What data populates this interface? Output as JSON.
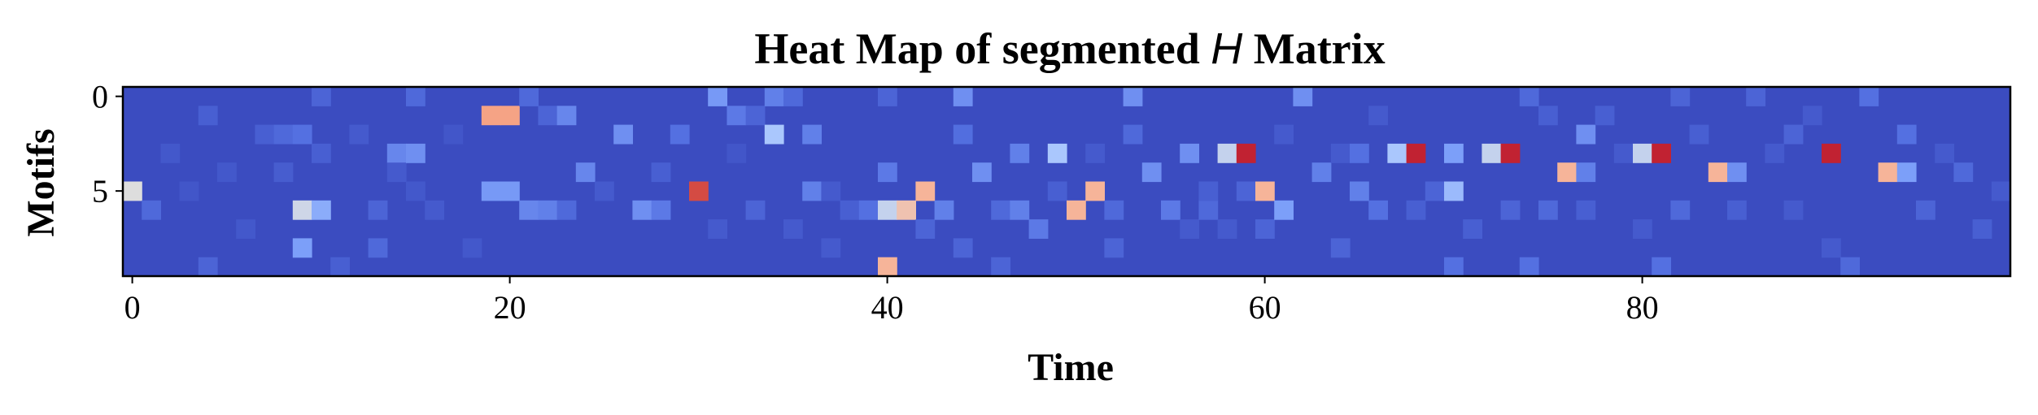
{
  "chart_data": {
    "type": "heatmap",
    "title_prefix": "Heat Map of segmented ",
    "title_var": "H",
    "title_suffix": " Matrix",
    "xlabel": "Time",
    "ylabel": "Motifs",
    "x_ticks": [
      0,
      20,
      40,
      60,
      80
    ],
    "y_ticks": [
      0,
      5
    ],
    "n_cols": 100,
    "n_rows": 10,
    "colormap": "coolwarm",
    "base_color": "#3b4cc0",
    "value_range": [
      0,
      1
    ],
    "cells": [
      [
        0,
        5,
        0.55
      ],
      [
        1,
        6,
        0.12
      ],
      [
        2,
        3,
        0.05
      ],
      [
        3,
        5,
        0.04
      ],
      [
        4,
        1,
        0.08
      ],
      [
        4,
        9,
        0.1
      ],
      [
        5,
        4,
        0.05
      ],
      [
        6,
        7,
        0.05
      ],
      [
        7,
        2,
        0.08
      ],
      [
        8,
        2,
        0.12
      ],
      [
        8,
        4,
        0.07
      ],
      [
        9,
        2,
        0.15
      ],
      [
        9,
        6,
        0.52
      ],
      [
        9,
        8,
        0.3
      ],
      [
        10,
        0,
        0.1
      ],
      [
        10,
        3,
        0.08
      ],
      [
        10,
        6,
        0.35
      ],
      [
        11,
        9,
        0.08
      ],
      [
        12,
        2,
        0.06
      ],
      [
        13,
        6,
        0.1
      ],
      [
        13,
        8,
        0.12
      ],
      [
        14,
        3,
        0.22
      ],
      [
        14,
        4,
        0.06
      ],
      [
        15,
        3,
        0.25
      ],
      [
        15,
        0,
        0.12
      ],
      [
        15,
        5,
        0.05
      ],
      [
        16,
        6,
        0.06
      ],
      [
        17,
        2,
        0.04
      ],
      [
        18,
        8,
        0.05
      ],
      [
        19,
        1,
        0.72
      ],
      [
        19,
        5,
        0.28
      ],
      [
        20,
        1,
        0.72
      ],
      [
        20,
        5,
        0.28
      ],
      [
        21,
        0,
        0.12
      ],
      [
        21,
        6,
        0.22
      ],
      [
        22,
        6,
        0.2
      ],
      [
        22,
        1,
        0.1
      ],
      [
        23,
        1,
        0.22
      ],
      [
        23,
        6,
        0.12
      ],
      [
        24,
        4,
        0.22
      ],
      [
        25,
        5,
        0.06
      ],
      [
        26,
        2,
        0.25
      ],
      [
        27,
        6,
        0.25
      ],
      [
        28,
        6,
        0.18
      ],
      [
        28,
        4,
        0.08
      ],
      [
        29,
        2,
        0.15
      ],
      [
        30,
        5,
        0.88
      ],
      [
        31,
        0,
        0.28
      ],
      [
        31,
        7,
        0.06
      ],
      [
        32,
        1,
        0.18
      ],
      [
        32,
        3,
        0.04
      ],
      [
        33,
        6,
        0.1
      ],
      [
        33,
        1,
        0.1
      ],
      [
        34,
        0,
        0.2
      ],
      [
        34,
        2,
        0.45
      ],
      [
        35,
        0,
        0.12
      ],
      [
        35,
        7,
        0.06
      ],
      [
        36,
        2,
        0.2
      ],
      [
        36,
        5,
        0.2
      ],
      [
        37,
        5,
        0.06
      ],
      [
        37,
        8,
        0.06
      ],
      [
        38,
        6,
        0.08
      ],
      [
        39,
        6,
        0.15
      ],
      [
        40,
        0,
        0.1
      ],
      [
        40,
        4,
        0.18
      ],
      [
        40,
        6,
        0.5
      ],
      [
        40,
        9,
        0.66
      ],
      [
        41,
        6,
        0.62
      ],
      [
        42,
        5,
        0.66
      ],
      [
        42,
        7,
        0.1
      ],
      [
        43,
        6,
        0.2
      ],
      [
        44,
        0,
        0.25
      ],
      [
        44,
        2,
        0.14
      ],
      [
        44,
        8,
        0.1
      ],
      [
        45,
        4,
        0.25
      ],
      [
        46,
        6,
        0.12
      ],
      [
        46,
        9,
        0.1
      ],
      [
        47,
        3,
        0.2
      ],
      [
        47,
        6,
        0.2
      ],
      [
        48,
        7,
        0.18
      ],
      [
        49,
        3,
        0.45
      ],
      [
        49,
        5,
        0.08
      ],
      [
        50,
        6,
        0.66
      ],
      [
        51,
        5,
        0.66
      ],
      [
        51,
        3,
        0.06
      ],
      [
        52,
        6,
        0.12
      ],
      [
        52,
        8,
        0.1
      ],
      [
        53,
        0,
        0.25
      ],
      [
        53,
        2,
        0.12
      ],
      [
        54,
        4,
        0.25
      ],
      [
        55,
        6,
        0.18
      ],
      [
        56,
        3,
        0.25
      ],
      [
        56,
        7,
        0.06
      ],
      [
        57,
        6,
        0.12
      ],
      [
        57,
        5,
        0.08
      ],
      [
        58,
        3,
        0.5
      ],
      [
        58,
        7,
        0.06
      ],
      [
        59,
        3,
        0.95
      ],
      [
        59,
        5,
        0.1
      ],
      [
        60,
        5,
        0.66
      ],
      [
        60,
        7,
        0.1
      ],
      [
        61,
        6,
        0.3
      ],
      [
        61,
        2,
        0.06
      ],
      [
        62,
        0,
        0.25
      ],
      [
        63,
        4,
        0.2
      ],
      [
        64,
        3,
        0.06
      ],
      [
        64,
        8,
        0.1
      ],
      [
        65,
        3,
        0.15
      ],
      [
        65,
        5,
        0.2
      ],
      [
        66,
        6,
        0.15
      ],
      [
        66,
        1,
        0.06
      ],
      [
        67,
        3,
        0.45
      ],
      [
        68,
        3,
        0.95
      ],
      [
        68,
        6,
        0.08
      ],
      [
        69,
        5,
        0.1
      ],
      [
        70,
        3,
        0.3
      ],
      [
        70,
        5,
        0.4
      ],
      [
        70,
        9,
        0.15
      ],
      [
        71,
        7,
        0.08
      ],
      [
        72,
        3,
        0.5
      ],
      [
        73,
        3,
        0.95
      ],
      [
        73,
        6,
        0.1
      ],
      [
        74,
        0,
        0.12
      ],
      [
        74,
        9,
        0.15
      ],
      [
        75,
        6,
        0.12
      ],
      [
        75,
        1,
        0.08
      ],
      [
        76,
        4,
        0.66
      ],
      [
        77,
        4,
        0.2
      ],
      [
        77,
        2,
        0.25
      ],
      [
        77,
        6,
        0.08
      ],
      [
        78,
        1,
        0.08
      ],
      [
        79,
        3,
        0.06
      ],
      [
        80,
        3,
        0.5
      ],
      [
        80,
        7,
        0.06
      ],
      [
        81,
        3,
        0.95
      ],
      [
        81,
        9,
        0.15
      ],
      [
        82,
        0,
        0.1
      ],
      [
        82,
        6,
        0.12
      ],
      [
        83,
        2,
        0.08
      ],
      [
        84,
        4,
        0.66
      ],
      [
        85,
        4,
        0.25
      ],
      [
        85,
        6,
        0.08
      ],
      [
        86,
        0,
        0.1
      ],
      [
        87,
        3,
        0.06
      ],
      [
        88,
        2,
        0.1
      ],
      [
        88,
        6,
        0.06
      ],
      [
        89,
        1,
        0.06
      ],
      [
        90,
        3,
        0.95
      ],
      [
        90,
        8,
        0.06
      ],
      [
        91,
        9,
        0.12
      ],
      [
        92,
        0,
        0.15
      ],
      [
        93,
        4,
        0.66
      ],
      [
        94,
        4,
        0.3
      ],
      [
        94,
        2,
        0.15
      ],
      [
        95,
        6,
        0.1
      ],
      [
        96,
        3,
        0.06
      ],
      [
        97,
        4,
        0.12
      ],
      [
        98,
        7,
        0.08
      ],
      [
        99,
        5,
        0.06
      ]
    ]
  }
}
